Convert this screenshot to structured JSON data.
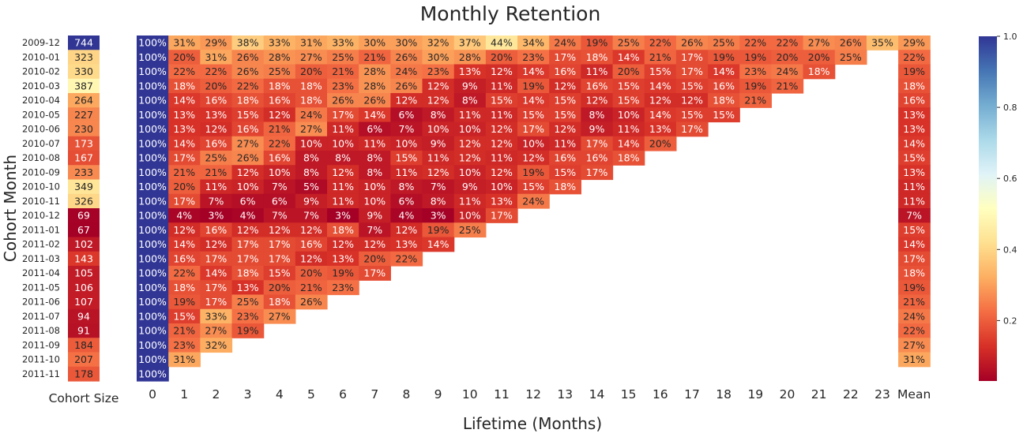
{
  "chart_data": [
    {
      "type": "heatmap",
      "title": "Monthly Retention",
      "xlabel": "Lifetime (Months)",
      "ylabel": "Cohort Month",
      "value_format": "percent",
      "rows": [
        "2009-12",
        "2010-01",
        "2010-02",
        "2010-03",
        "2010-04",
        "2010-05",
        "2010-06",
        "2010-07",
        "2010-08",
        "2010-09",
        "2010-10",
        "2010-11",
        "2010-12",
        "2011-01",
        "2011-02",
        "2011-03",
        "2011-04",
        "2011-05",
        "2011-06",
        "2011-07",
        "2011-08",
        "2011-09",
        "2011-10",
        "2011-11"
      ],
      "columns": [
        "0",
        "1",
        "2",
        "3",
        "4",
        "5",
        "6",
        "7",
        "8",
        "9",
        "10",
        "11",
        "12",
        "13",
        "14",
        "15",
        "16",
        "17",
        "18",
        "19",
        "20",
        "21",
        "22",
        "23",
        "Mean"
      ],
      "values": [
        [
          100,
          31,
          29,
          38,
          33,
          31,
          33,
          30,
          30,
          32,
          37,
          44,
          34,
          24,
          19,
          25,
          22,
          26,
          25,
          22,
          22,
          27,
          26,
          35,
          29
        ],
        [
          100,
          20,
          31,
          26,
          28,
          27,
          25,
          21,
          26,
          30,
          28,
          20,
          23,
          17,
          18,
          14,
          21,
          17,
          19,
          19,
          20,
          20,
          25,
          null,
          22
        ],
        [
          100,
          22,
          22,
          26,
          25,
          20,
          21,
          28,
          24,
          23,
          13,
          12,
          14,
          16,
          11,
          20,
          15,
          17,
          14,
          23,
          24,
          18,
          null,
          null,
          19
        ],
        [
          100,
          18,
          20,
          22,
          18,
          18,
          23,
          28,
          26,
          12,
          9,
          11,
          19,
          12,
          16,
          15,
          14,
          15,
          16,
          19,
          21,
          null,
          null,
          null,
          18
        ],
        [
          100,
          14,
          16,
          18,
          16,
          18,
          26,
          26,
          12,
          12,
          8,
          15,
          14,
          15,
          12,
          15,
          12,
          12,
          18,
          21,
          null,
          null,
          null,
          null,
          16
        ],
        [
          100,
          13,
          13,
          15,
          12,
          24,
          17,
          14,
          6,
          8,
          11,
          11,
          15,
          15,
          8,
          10,
          14,
          15,
          15,
          null,
          null,
          null,
          null,
          null,
          13
        ],
        [
          100,
          13,
          12,
          16,
          21,
          27,
          11,
          6,
          7,
          10,
          10,
          12,
          17,
          12,
          9,
          11,
          13,
          17,
          null,
          null,
          null,
          null,
          null,
          null,
          13
        ],
        [
          100,
          14,
          16,
          27,
          22,
          10,
          10,
          11,
          10,
          9,
          12,
          12,
          10,
          11,
          17,
          14,
          20,
          null,
          null,
          null,
          null,
          null,
          null,
          null,
          14
        ],
        [
          100,
          17,
          25,
          26,
          16,
          8,
          8,
          8,
          15,
          11,
          12,
          11,
          12,
          16,
          16,
          18,
          null,
          null,
          null,
          null,
          null,
          null,
          null,
          null,
          15
        ],
        [
          100,
          21,
          21,
          12,
          10,
          8,
          12,
          8,
          11,
          12,
          10,
          12,
          19,
          15,
          17,
          null,
          null,
          null,
          null,
          null,
          null,
          null,
          null,
          null,
          13
        ],
        [
          100,
          20,
          11,
          10,
          7,
          5,
          11,
          10,
          8,
          7,
          9,
          10,
          15,
          18,
          null,
          null,
          null,
          null,
          null,
          null,
          null,
          null,
          null,
          null,
          11
        ],
        [
          100,
          17,
          7,
          6,
          6,
          9,
          11,
          10,
          6,
          8,
          11,
          13,
          24,
          null,
          null,
          null,
          null,
          null,
          null,
          null,
          null,
          null,
          null,
          null,
          11
        ],
        [
          100,
          4,
          3,
          4,
          7,
          7,
          3,
          9,
          4,
          3,
          10,
          17,
          null,
          null,
          null,
          null,
          null,
          null,
          null,
          null,
          null,
          null,
          null,
          null,
          7
        ],
        [
          100,
          12,
          16,
          12,
          12,
          12,
          18,
          7,
          12,
          19,
          25,
          null,
          null,
          null,
          null,
          null,
          null,
          null,
          null,
          null,
          null,
          null,
          null,
          null,
          15
        ],
        [
          100,
          14,
          12,
          17,
          17,
          16,
          12,
          12,
          13,
          14,
          null,
          null,
          null,
          null,
          null,
          null,
          null,
          null,
          null,
          null,
          null,
          null,
          null,
          null,
          14
        ],
        [
          100,
          16,
          17,
          17,
          17,
          12,
          13,
          20,
          22,
          null,
          null,
          null,
          null,
          null,
          null,
          null,
          null,
          null,
          null,
          null,
          null,
          null,
          null,
          null,
          17
        ],
        [
          100,
          22,
          14,
          18,
          15,
          20,
          19,
          17,
          null,
          null,
          null,
          null,
          null,
          null,
          null,
          null,
          null,
          null,
          null,
          null,
          null,
          null,
          null,
          null,
          18
        ],
        [
          100,
          18,
          17,
          13,
          20,
          21,
          23,
          null,
          null,
          null,
          null,
          null,
          null,
          null,
          null,
          null,
          null,
          null,
          null,
          null,
          null,
          null,
          null,
          null,
          19
        ],
        [
          100,
          19,
          17,
          25,
          18,
          26,
          null,
          null,
          null,
          null,
          null,
          null,
          null,
          null,
          null,
          null,
          null,
          null,
          null,
          null,
          null,
          null,
          null,
          null,
          21
        ],
        [
          100,
          15,
          33,
          23,
          27,
          null,
          null,
          null,
          null,
          null,
          null,
          null,
          null,
          null,
          null,
          null,
          null,
          null,
          null,
          null,
          null,
          null,
          null,
          null,
          24
        ],
        [
          100,
          21,
          27,
          19,
          null,
          null,
          null,
          null,
          null,
          null,
          null,
          null,
          null,
          null,
          null,
          null,
          null,
          null,
          null,
          null,
          null,
          null,
          null,
          null,
          22
        ],
        [
          100,
          23,
          32,
          null,
          null,
          null,
          null,
          null,
          null,
          null,
          null,
          null,
          null,
          null,
          null,
          null,
          null,
          null,
          null,
          null,
          null,
          null,
          null,
          null,
          27
        ],
        [
          100,
          31,
          null,
          null,
          null,
          null,
          null,
          null,
          null,
          null,
          null,
          null,
          null,
          null,
          null,
          null,
          null,
          null,
          null,
          null,
          null,
          null,
          null,
          null,
          31
        ],
        [
          100,
          null,
          null,
          null,
          null,
          null,
          null,
          null,
          null,
          null,
          null,
          null,
          null,
          null,
          null,
          null,
          null,
          null,
          null,
          null,
          null,
          null,
          null,
          null,
          null
        ]
      ],
      "colormap": "RdYlBu",
      "colorbar": {
        "range": [
          0.03,
          1.0
        ],
        "ticks": [
          "0.2",
          "0.4",
          "0.6",
          "0.8",
          "1.0"
        ]
      }
    },
    {
      "type": "heatmap",
      "xlabel": "Cohort Size",
      "values": [
        744,
        323,
        330,
        387,
        264,
        227,
        230,
        173,
        167,
        233,
        349,
        326,
        69,
        67,
        102,
        143,
        105,
        106,
        107,
        94,
        91,
        184,
        207,
        178
      ],
      "colormap": "RdYlBu"
    }
  ]
}
